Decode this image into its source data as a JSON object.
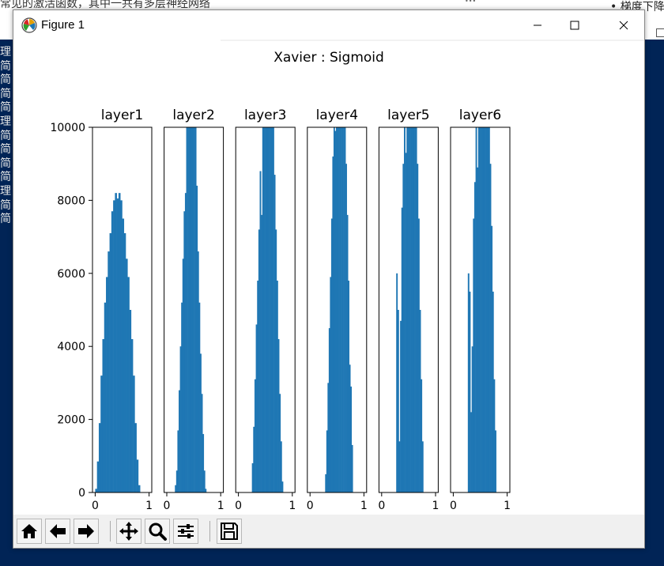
{
  "background": {
    "top_text": "常见的激活函数，其中一共有多层神经网络",
    "right_text": "• 梯度下降",
    "left_chars": [
      "理",
      "简",
      "简",
      "简",
      "简",
      "理",
      "简",
      "简",
      "简",
      "简",
      "理",
      "简",
      "简"
    ],
    "terminal_color": "#012456"
  },
  "window": {
    "title": "Figure 1",
    "minimize_icon": "minimize-icon",
    "maximize_icon": "maximize-icon",
    "close_icon": "close-icon"
  },
  "toolbar": {
    "buttons": [
      {
        "name": "home-button",
        "icon": "home-icon"
      },
      {
        "name": "back-button",
        "icon": "arrow-left-icon"
      },
      {
        "name": "forward-button",
        "icon": "arrow-right-icon"
      },
      {
        "name": "pan-button",
        "icon": "move-icon"
      },
      {
        "name": "zoom-button",
        "icon": "magnifier-icon"
      },
      {
        "name": "configure-subplots-button",
        "icon": "sliders-icon"
      },
      {
        "name": "save-button",
        "icon": "floppy-disk-icon"
      }
    ]
  },
  "chart_data": {
    "type": "bar",
    "title": "Xavier : Sigmoid",
    "bar_color": "#1f77b4",
    "ylim": [
      0,
      10000
    ],
    "yticks": [
      0,
      2000,
      4000,
      6000,
      8000,
      10000
    ],
    "ytick_labels": [
      "0",
      "2000",
      "4000",
      "6000",
      "8000",
      "10000"
    ],
    "xlim": [
      -0.05,
      1.05
    ],
    "xticks": [
      0,
      1
    ],
    "xtick_labels": [
      "0",
      "1"
    ],
    "bins": 30,
    "panels": [
      {
        "title": "layer1",
        "x_start": 0.0,
        "bin_width": 0.0333,
        "values": [
          100,
          850,
          1900,
          3200,
          4200,
          5200,
          5900,
          6600,
          7100,
          7700,
          8000,
          8200,
          8050,
          8200,
          8000,
          7500,
          7100,
          6400,
          5900,
          5000,
          4200,
          3200,
          1900,
          900,
          200
        ]
      },
      {
        "title": "layer2",
        "x_start": 0.15,
        "bin_width": 0.0233,
        "values": [
          200,
          600,
          1700,
          2800,
          4000,
          5200,
          6400,
          7700,
          8200,
          10000,
          10000,
          10000,
          10000,
          10000,
          10000,
          10000,
          10000,
          8400,
          6600,
          5200,
          3800,
          2700,
          1600,
          600,
          100
        ]
      },
      {
        "title": "layer3",
        "x_start": 0.25,
        "bin_width": 0.0241,
        "values": [
          800,
          1800,
          3100,
          4600,
          5800,
          7200,
          8800,
          7600,
          10000,
          10000,
          10000,
          10000,
          10000,
          10000,
          10000,
          10000,
          10000,
          8700,
          7200,
          5800,
          4200,
          2700,
          1400,
          300
        ]
      },
      {
        "title": "layer4",
        "x_start": 0.28,
        "bin_width": 0.0223,
        "values": [
          500,
          1700,
          3000,
          4500,
          5900,
          7500,
          9200,
          10000,
          9900,
          10000,
          10000,
          10000,
          10000,
          10000,
          10000,
          10000,
          10000,
          9000,
          7600,
          5800,
          3500,
          2900,
          1300
        ]
      },
      {
        "title": "layer5",
        "x_start": 0.27,
        "bin_width": 0.0239,
        "values": [
          6000,
          5000,
          1400,
          4700,
          7800,
          9000,
          10000,
          9300,
          10000,
          10000,
          10000,
          10000,
          10000,
          10000,
          10000,
          10000,
          9000,
          7500,
          5000,
          3100,
          1400
        ]
      },
      {
        "title": "layer6",
        "x_start": 0.27,
        "bin_width": 0.0239,
        "values": [
          6000,
          5500,
          2200,
          4000,
          7500,
          8500,
          10000,
          8900,
          10000,
          10000,
          10000,
          10000,
          10000,
          10000,
          10000,
          10000,
          10000,
          9000,
          7300,
          5500,
          3100,
          1700
        ]
      }
    ]
  }
}
